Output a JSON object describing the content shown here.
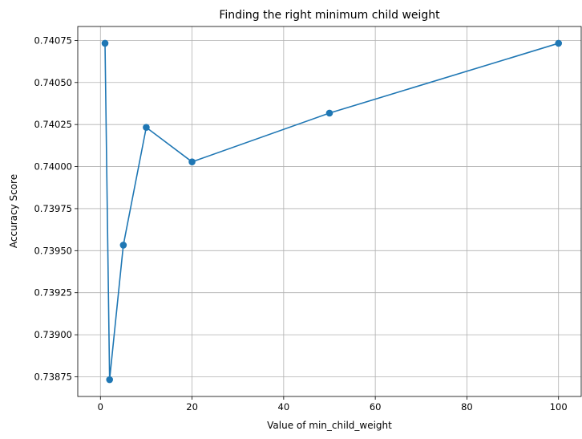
{
  "chart_data": {
    "type": "line",
    "title": "Finding the right minimum child weight",
    "xlabel": "Value of min_child_weight",
    "ylabel": "Accuracy Score",
    "xlim": [
      -4.95,
      104.95
    ],
    "ylim": [
      0.738633,
      0.740833
    ],
    "xticks": [
      0,
      20,
      40,
      60,
      80,
      100
    ],
    "xtick_labels": [
      "0",
      "20",
      "40",
      "60",
      "80",
      "100"
    ],
    "yticks": [
      0.73875,
      0.739,
      0.73925,
      0.7395,
      0.73975,
      0.74,
      0.74025,
      0.7405,
      0.74075
    ],
    "ytick_labels": [
      "0.73875",
      "0.73900",
      "0.73925",
      "0.73950",
      "0.73975",
      "0.74000",
      "0.74025",
      "0.74050",
      "0.74075"
    ],
    "grid": true,
    "series": [
      {
        "x": [
          1,
          2,
          5,
          10,
          20,
          50,
          100
        ],
        "y": [
          0.740733,
          0.738733,
          0.739533,
          0.740233,
          0.740028,
          0.740318,
          0.740733
        ],
        "color": "#1f77b4",
        "marker": "circle"
      }
    ]
  }
}
